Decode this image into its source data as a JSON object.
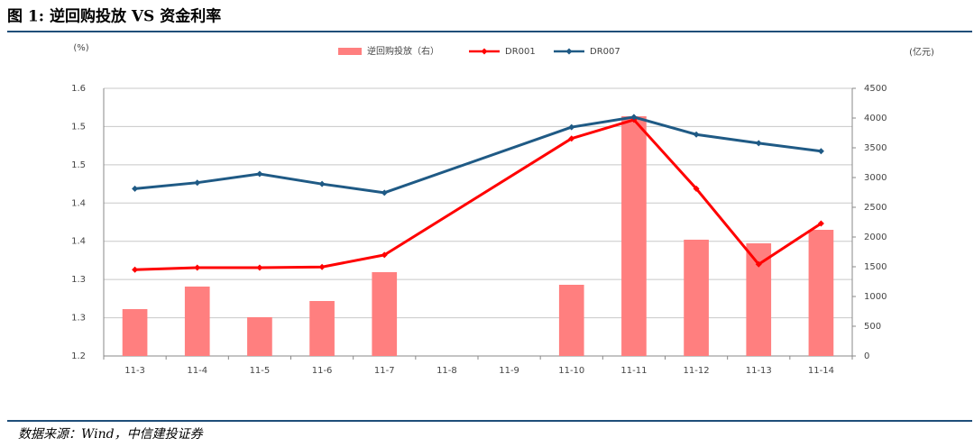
{
  "header": {
    "title": "图 1: 逆回购投放 VS 资金利率"
  },
  "footer": {
    "source": "数据来源：Wind，中信建投证券"
  },
  "chart_data": {
    "type": "combo",
    "y_unit": "(%)",
    "y2_unit": "(亿元)",
    "categories": [
      "11-3",
      "11-4",
      "11-5",
      "11-6",
      "11-7",
      "11-8",
      "11-9",
      "11-10",
      "11-11",
      "11-12",
      "11-13",
      "11-14"
    ],
    "series": [
      {
        "name": "逆回购投放（右）",
        "type": "bar",
        "axis": "y2",
        "color": "#ff7f7f",
        "values": [
          788,
          1167,
          652,
          924,
          1409,
          null,
          null,
          1197,
          4030,
          1955,
          1894,
          2121
        ]
      },
      {
        "name": "DR001",
        "type": "line",
        "color": "#ff0000",
        "values": [
          1.329,
          1.332,
          1.332,
          1.333,
          1.351,
          null,
          null,
          1.525,
          1.553,
          1.45,
          1.337,
          1.398
        ]
      },
      {
        "name": "DR007",
        "type": "line",
        "color": "#1f5a85",
        "values": [
          1.45,
          1.459,
          1.472,
          1.457,
          1.444,
          null,
          null,
          1.542,
          1.557,
          1.531,
          1.518,
          1.506
        ]
      }
    ],
    "ylim": [
      1.2,
      1.6
    ],
    "yticks": [
      1.2,
      {
        "value": 1.2571,
        "label": "1.3"
      },
      {
        "value": 1.3143,
        "label": "1.3"
      },
      {
        "value": 1.3714,
        "label": "1.4"
      },
      {
        "value": 1.4286,
        "label": "1.4"
      },
      {
        "value": 1.4857,
        "label": "1.5"
      },
      {
        "value": 1.5429,
        "label": "1.5"
      },
      1.6
    ],
    "y2lim": [
      0,
      4500
    ],
    "y2ticks": [
      0,
      500,
      1000,
      1500,
      2000,
      2500,
      3000,
      3500,
      4000,
      4500
    ],
    "grid": true
  }
}
